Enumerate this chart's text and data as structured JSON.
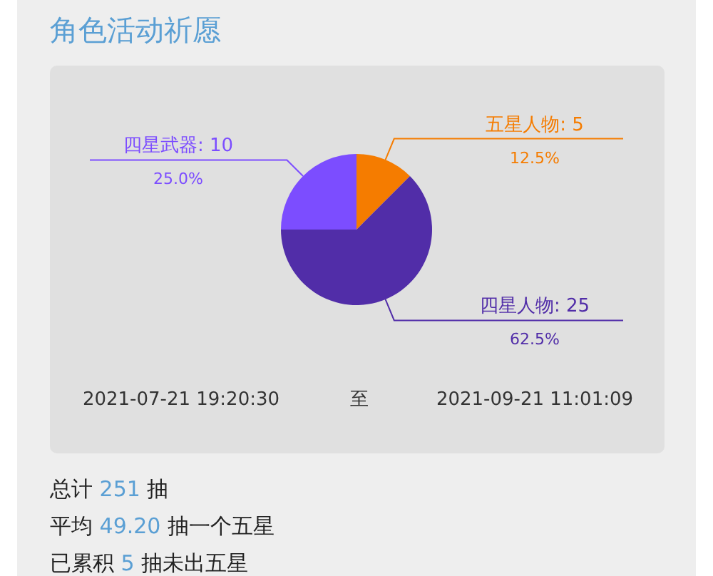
{
  "chart_data": {
    "type": "pie",
    "title": "角色活动祈愿",
    "categories": [
      "五星人物: 5",
      "四星人物: 25",
      "四星武器: 10"
    ],
    "values": [
      12.5,
      62.5,
      25.0
    ],
    "colors": [
      "#f57c00",
      "#512da8",
      "#7c4dff"
    ],
    "value_labels": [
      "12.5%",
      "62.5%",
      "25.0%"
    ],
    "annotations": [
      "2021-07-21 19:20:30",
      "至",
      "2021-09-21 11:01:09",
      "总计 251 抽",
      "平均 49.20 抽一个五星",
      "已累积 5 抽未出五星"
    ]
  }
}
